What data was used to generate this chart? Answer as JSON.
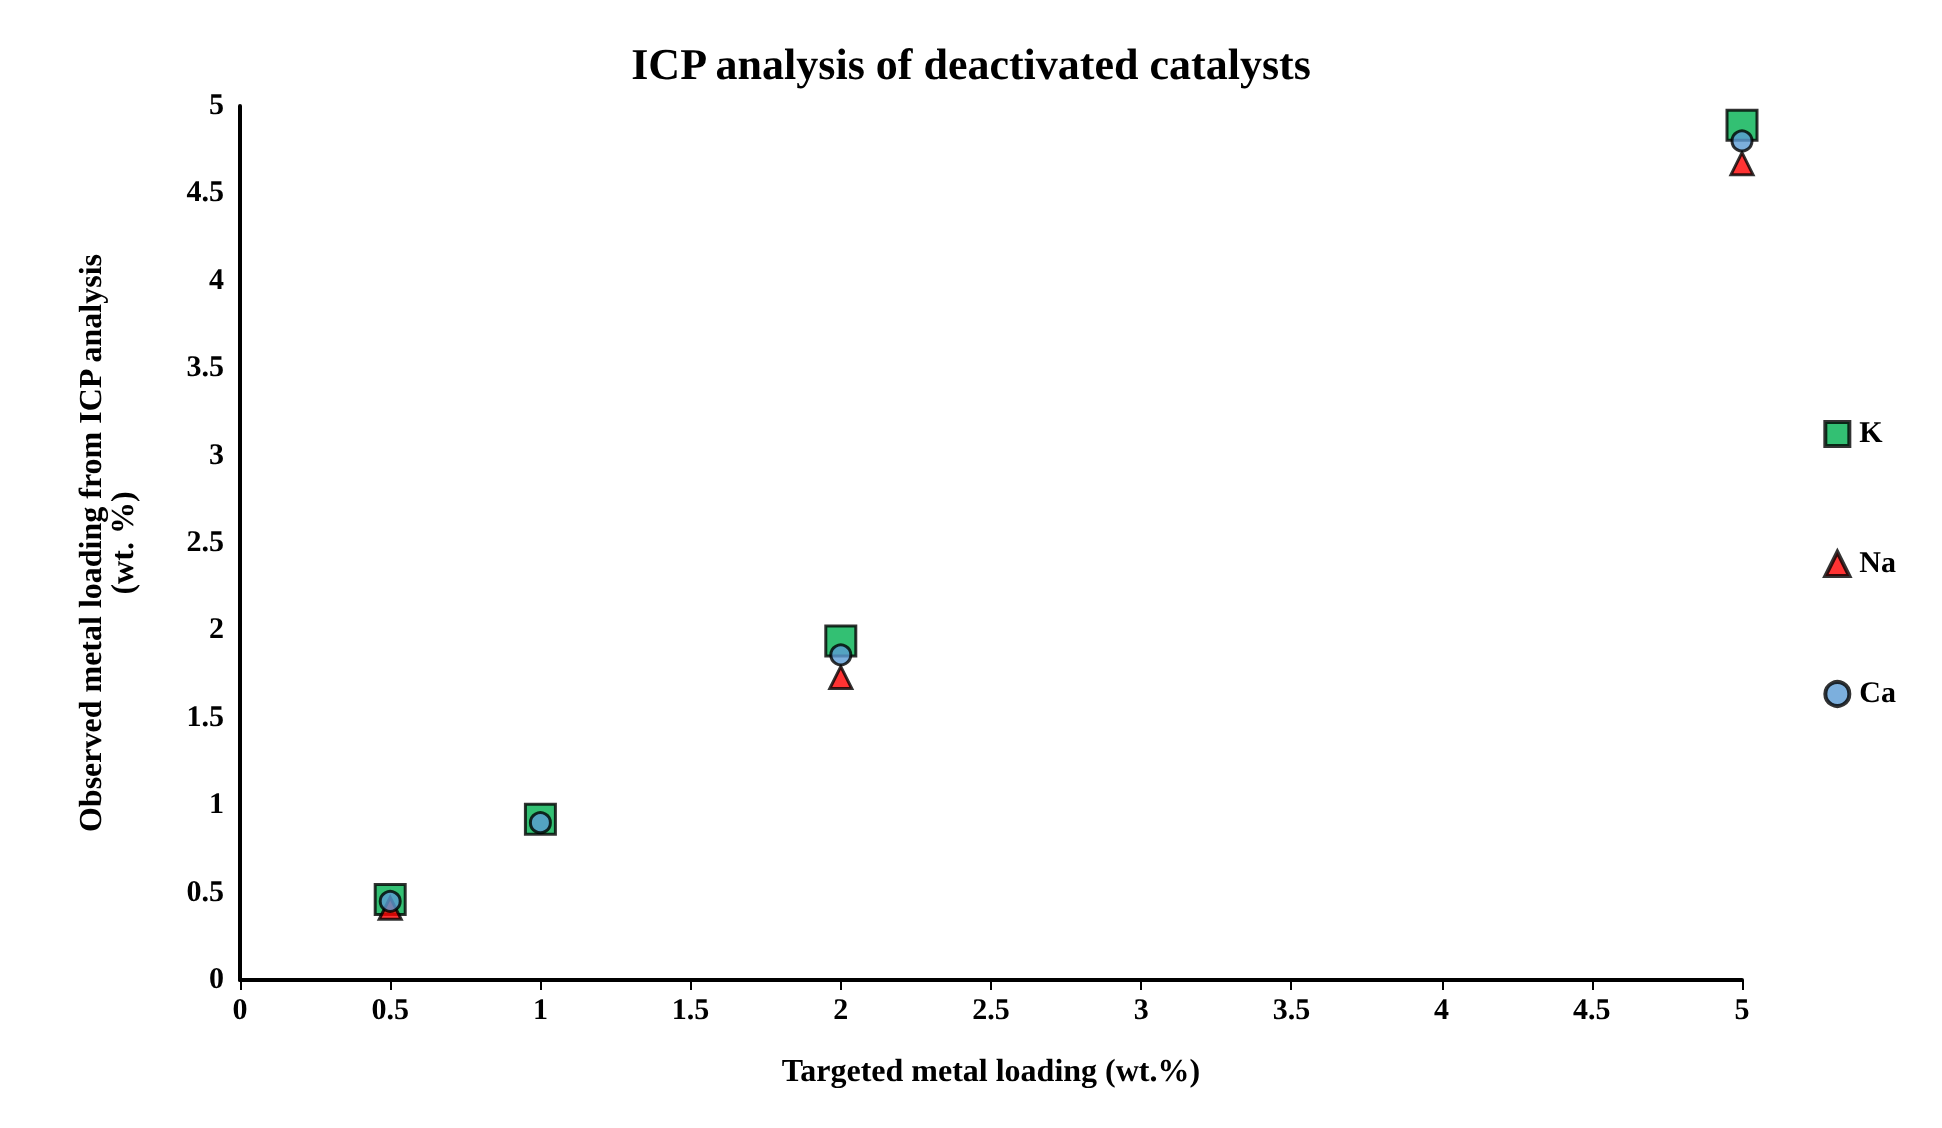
{
  "chart_data": {
    "type": "scatter",
    "title": "ICP analysis of deactivated catalysts",
    "xlabel": "Targeted metal loading (wt.%)",
    "ylabel": "Observed metal loading from ICP analysis\n(wt. %)",
    "x": [
      0.5,
      1,
      2,
      5
    ],
    "series": [
      {
        "name": "K",
        "color": "#00b050",
        "marker": "square",
        "values": [
          0.46,
          0.92,
          1.94,
          4.89
        ]
      },
      {
        "name": "Na",
        "color": "#ff0000",
        "marker": "triangle",
        "values": [
          0.41,
          null,
          1.73,
          4.67
        ]
      },
      {
        "name": "Ca",
        "color": "#5b9bd5",
        "marker": "circle",
        "values": [
          0.45,
          0.9,
          1.86,
          4.8
        ]
      }
    ],
    "xlim": [
      0,
      5
    ],
    "xticks": [
      0,
      0.5,
      1,
      1.5,
      2,
      2.5,
      3,
      3.5,
      4,
      4.5,
      5
    ],
    "ylim": [
      0,
      5
    ],
    "yticks": [
      0,
      0.5,
      1,
      1.5,
      2,
      2.5,
      3,
      3.5,
      4,
      4.5,
      5
    ],
    "grid": false,
    "legend": "right"
  }
}
